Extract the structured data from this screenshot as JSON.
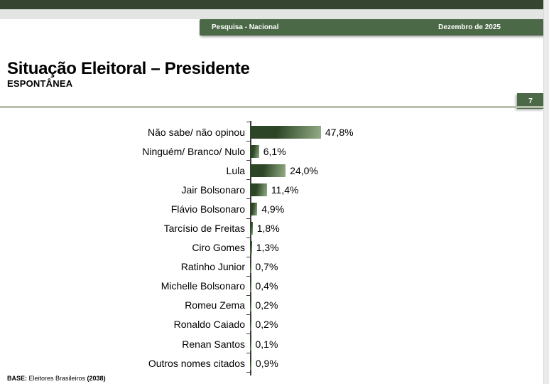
{
  "header": {
    "banner_left": "Pesquisa - Nacional",
    "banner_right": "Dezembro de 2025",
    "title": "Situação Eleitoral – Presidente",
    "subtitle": "ESPONTÂNEA",
    "page_number": "7"
  },
  "footer": {
    "base_label": "BASE:",
    "base_text": " Eleitores Brasileiros ",
    "base_count": "(2038)"
  },
  "colors": {
    "top_bar_green": "#36452f",
    "banner_green": "#4b6946",
    "rule_sage": "#b7bfae",
    "bar_dark": "#2c4526",
    "bar_light": "#94ad86"
  },
  "chart_data": {
    "type": "bar",
    "orientation": "horizontal",
    "title": "Situação Eleitoral – Presidente (Espontânea)",
    "categories": [
      "Não sabe/ não opinou",
      "Ninguém/ Branco/ Nulo",
      "Lula",
      "Jair Bolsonaro",
      "Flávio Bolsonaro",
      "Tarcísio de Freitas",
      "Ciro Gomes",
      "Ratinho Junior",
      "Michelle Bolsonaro",
      "Romeu Zema",
      "Ronaldo Caiado",
      "Renan Santos",
      "Outros nomes citados"
    ],
    "values": [
      47.8,
      6.1,
      24.0,
      11.4,
      4.9,
      1.8,
      1.3,
      0.7,
      0.4,
      0.2,
      0.2,
      0.1,
      0.9
    ],
    "value_labels": [
      "47,8%",
      "6,1%",
      "24,0%",
      "11,4%",
      "4,9%",
      "1,8%",
      "1,3%",
      "0,7%",
      "0,4%",
      "0,2%",
      "0,2%",
      "0,1%",
      "0,9%"
    ],
    "unit": "%",
    "xlim": [
      0,
      50
    ],
    "grid": false,
    "legend": false,
    "data_labels": true
  }
}
